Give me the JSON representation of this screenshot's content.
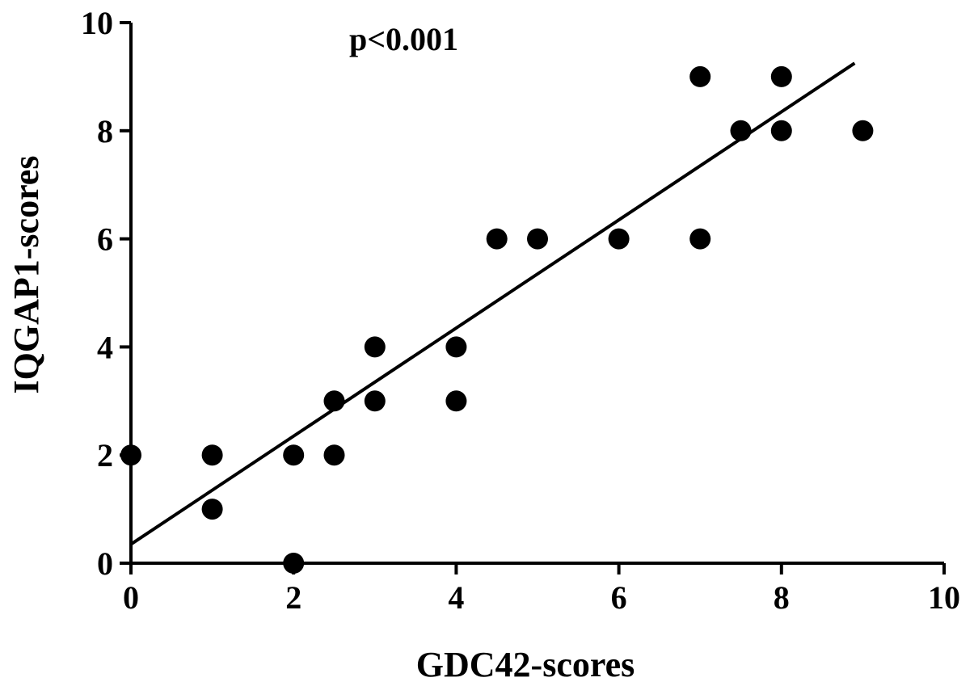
{
  "chart_data": {
    "type": "scatter",
    "title": "",
    "annotation": "p<0.001",
    "xlabel": "GDC42-scores",
    "ylabel": "IQGAP1-scores",
    "xlim": [
      0,
      10
    ],
    "ylim": [
      0,
      10
    ],
    "xticks": [
      "0",
      "2",
      "4",
      "6",
      "8",
      "10"
    ],
    "yticks": [
      "0",
      "2",
      "4",
      "6",
      "8",
      "10"
    ],
    "grid": false,
    "legend": "none",
    "points": [
      {
        "x": 0,
        "y": 2
      },
      {
        "x": 1,
        "y": 2
      },
      {
        "x": 1,
        "y": 1
      },
      {
        "x": 2,
        "y": 2
      },
      {
        "x": 2,
        "y": 0
      },
      {
        "x": 2.5,
        "y": 3
      },
      {
        "x": 2.5,
        "y": 2
      },
      {
        "x": 3,
        "y": 4
      },
      {
        "x": 3,
        "y": 3
      },
      {
        "x": 4,
        "y": 4
      },
      {
        "x": 4,
        "y": 3
      },
      {
        "x": 4.5,
        "y": 6
      },
      {
        "x": 5,
        "y": 6
      },
      {
        "x": 6,
        "y": 6
      },
      {
        "x": 7,
        "y": 9
      },
      {
        "x": 7,
        "y": 6
      },
      {
        "x": 7.5,
        "y": 8
      },
      {
        "x": 8,
        "y": 9
      },
      {
        "x": 8,
        "y": 8
      },
      {
        "x": 9,
        "y": 8
      }
    ],
    "fit_line": {
      "x": [
        0,
        8.9
      ],
      "y": [
        0.35,
        9.25
      ]
    },
    "colors": {
      "points": "#000000",
      "line": "#000000",
      "axes": "#000000"
    }
  }
}
